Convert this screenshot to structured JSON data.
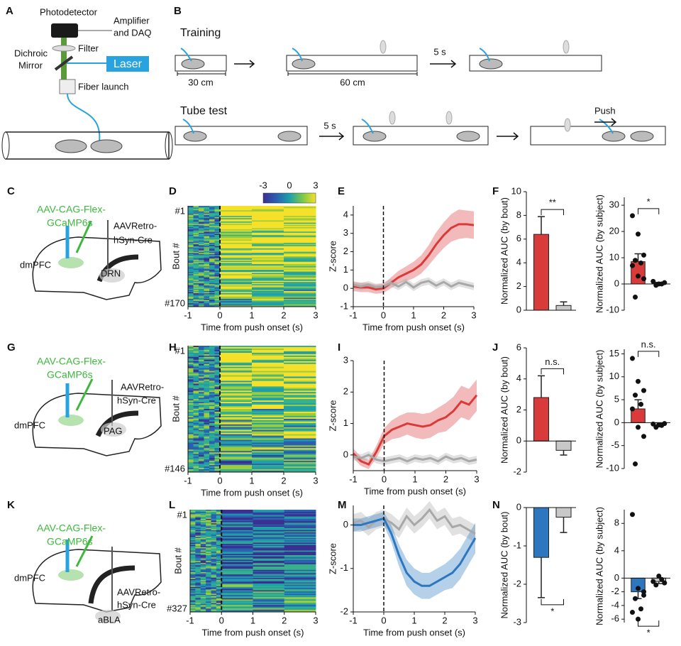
{
  "figure": {
    "panel_letters": [
      "A",
      "B",
      "C",
      "D",
      "E",
      "F",
      "G",
      "H",
      "I",
      "J",
      "K",
      "L",
      "M",
      "N"
    ],
    "setup": {
      "photodetector": "Photodetector",
      "amplifier": [
        "Amplifier",
        "and DAQ"
      ],
      "filter": "Filter",
      "dichroic": [
        "Dichroic",
        "Mirror"
      ],
      "laser": "Laser",
      "fiber_launch": "Fiber launch"
    },
    "protocol": {
      "training": "Training",
      "tube_test": "Tube test",
      "length_short": "30 cm",
      "length_long": "60 cm",
      "delay_training": "5 s",
      "delay_test": "5 s",
      "push": "Push"
    },
    "surgeries": [
      {
        "virus_flex": [
          "AAV-CAG-Flex-",
          "GCaMP6s"
        ],
        "virus_retro": [
          "AAVRetro-",
          "hSyn-Cre"
        ],
        "source": "dmPFC",
        "target": "DRN"
      },
      {
        "virus_flex": [
          "AAV-CAG-Flex-",
          "GCaMP6s"
        ],
        "virus_retro": [
          "AAVRetro-",
          "hSyn-Cre"
        ],
        "source": "dmPFC",
        "target": "PAG"
      },
      {
        "virus_flex": [
          "AAV-CAG-Flex-",
          "GCaMP6s"
        ],
        "virus_retro": [
          "AAVRetro-",
          "hSyn-Cre"
        ],
        "source": "dmPFC",
        "target": "aBLA"
      }
    ]
  },
  "chart_data": [
    {
      "type": "heatmap",
      "xlabel": "Time from push onset (s)",
      "ylabel": "Bout #",
      "xlim": [
        -1,
        3
      ],
      "xticks": [
        -1,
        0,
        1,
        2,
        3
      ],
      "vline": 0,
      "row_labels": [
        "#1",
        "#170"
      ],
      "clim": [
        -3,
        3
      ],
      "cticks": [
        -3,
        0,
        3
      ]
    },
    {
      "type": "line",
      "xlabel": "Time from push onset (s)",
      "ylabel": "Z-score",
      "xlim": [
        -1,
        3
      ],
      "xticks": [
        -1,
        0,
        1,
        2,
        3
      ],
      "ylim": [
        -1,
        4.5
      ],
      "yticks": [
        -1,
        0,
        1,
        2,
        3,
        4
      ],
      "vline": 0,
      "x": [
        -1,
        -0.75,
        -0.5,
        -0.25,
        0,
        0.25,
        0.5,
        0.75,
        1,
        1.25,
        1.5,
        1.75,
        2,
        2.25,
        2.5,
        2.75,
        3
      ],
      "series": [
        {
          "color": "#d93a3a",
          "values": [
            0.1,
            0.05,
            0.05,
            -0.05,
            0,
            0.3,
            0.6,
            0.8,
            1.0,
            1.3,
            1.8,
            2.4,
            2.9,
            3.3,
            3.5,
            3.5,
            3.45
          ],
          "error": [
            0.25,
            0.25,
            0.25,
            0.25,
            0.25,
            0.3,
            0.35,
            0.4,
            0.45,
            0.5,
            0.55,
            0.65,
            0.7,
            0.75,
            0.8,
            0.75,
            0.75
          ]
        },
        {
          "color": "#a8a8a8",
          "values": [
            0.2,
            0.1,
            0.2,
            0.05,
            0.1,
            0.3,
            0.1,
            0.35,
            0.05,
            0.3,
            0.4,
            0.15,
            0.35,
            0.1,
            0.3,
            0.2,
            0.1
          ],
          "error": [
            0.2,
            0.2,
            0.2,
            0.2,
            0.2,
            0.2,
            0.2,
            0.2,
            0.2,
            0.2,
            0.2,
            0.2,
            0.2,
            0.2,
            0.2,
            0.2,
            0.2
          ]
        }
      ]
    },
    {
      "type": "bar",
      "ylabel": "Normalized AUC (by bout)",
      "ylim": [
        0,
        10
      ],
      "yticks": [
        0,
        2,
        4,
        6,
        8,
        10
      ],
      "values": [
        6.4,
        0.4
      ],
      "errors": [
        1.5,
        0.3
      ],
      "colors": [
        "#d93a3a",
        "#c8c8c8"
      ],
      "significance": "**",
      "significance_color": "#d93a3a",
      "bracket": "above"
    },
    {
      "type": "bar_scatter",
      "ylabel": "Normalized AUC (by subject)",
      "ylim": [
        -10,
        33
      ],
      "yticks": [
        -10,
        0,
        10,
        20,
        30
      ],
      "values": [
        8.5,
        0.3
      ],
      "errors": [
        3,
        0.3
      ],
      "colors": [
        "#d93a3a",
        "#c8c8c8"
      ],
      "points": [
        [
          26,
          19,
          11,
          9,
          8,
          7,
          3,
          2,
          -5
        ],
        [
          1,
          0,
          0.5,
          -0.5,
          0
        ]
      ],
      "significance": "*",
      "significance_color": "#d93a3a",
      "bracket": "above"
    },
    {
      "type": "heatmap",
      "xlabel": "Time from push onset (s)",
      "ylabel": "Bout #",
      "xlim": [
        -1,
        3
      ],
      "xticks": [
        -1,
        0,
        1,
        2,
        3
      ],
      "vline": 0,
      "row_labels": [
        "#1",
        "#146"
      ]
    },
    {
      "type": "line",
      "xlabel": "Time from push onset (s)",
      "ylabel": "Z-score",
      "xlim": [
        -1,
        3
      ],
      "xticks": [
        -1,
        0,
        1,
        2,
        3
      ],
      "ylim": [
        -0.5,
        3
      ],
      "yticks": [
        0,
        1,
        2,
        3
      ],
      "vline": 0,
      "x": [
        -1,
        -0.75,
        -0.5,
        -0.25,
        0,
        0.25,
        0.5,
        0.75,
        1,
        1.25,
        1.5,
        1.75,
        2,
        2.25,
        2.5,
        2.75,
        3
      ],
      "series": [
        {
          "color": "#d93a3a",
          "values": [
            0.05,
            -0.2,
            -0.3,
            0.1,
            0.6,
            0.8,
            0.9,
            1.0,
            0.95,
            0.9,
            0.95,
            1.1,
            1.2,
            1.4,
            1.7,
            1.6,
            1.9
          ],
          "error": [
            0.15,
            0.15,
            0.15,
            0.2,
            0.25,
            0.3,
            0.35,
            0.35,
            0.4,
            0.4,
            0.4,
            0.4,
            0.45,
            0.45,
            0.5,
            0.5,
            0.5
          ]
        },
        {
          "color": "#a8a8a8",
          "values": [
            -0.05,
            -0.1,
            0.0,
            -0.15,
            -0.2,
            -0.15,
            -0.1,
            -0.2,
            -0.1,
            -0.15,
            -0.1,
            -0.2,
            -0.05,
            -0.15,
            -0.1,
            -0.2,
            -0.15
          ],
          "error": [
            0.12,
            0.12,
            0.12,
            0.12,
            0.12,
            0.12,
            0.12,
            0.12,
            0.12,
            0.12,
            0.12,
            0.12,
            0.12,
            0.12,
            0.12,
            0.12,
            0.12
          ]
        }
      ]
    },
    {
      "type": "bar",
      "ylabel": "Normalized AUC (by bout)",
      "ylim": [
        -2,
        6
      ],
      "yticks": [
        -2,
        0,
        2,
        4,
        6
      ],
      "values": [
        2.8,
        -0.6
      ],
      "errors": [
        1.4,
        0.3
      ],
      "colors": [
        "#d93a3a",
        "#c8c8c8"
      ],
      "significance": "n.s.",
      "significance_color": "#222222",
      "bracket": "above"
    },
    {
      "type": "bar_scatter",
      "ylabel": "Normalized AUC (by subject)",
      "ylim": [
        -10,
        16
      ],
      "yticks": [
        -10,
        -5,
        0,
        5,
        10,
        15
      ],
      "values": [
        3,
        -0.5
      ],
      "errors": [
        2,
        0.3
      ],
      "colors": [
        "#d93a3a",
        "#c8c8c8"
      ],
      "points": [
        [
          14,
          9,
          7,
          6,
          4,
          3,
          -1,
          -3,
          -9
        ],
        [
          -0.3,
          -0.5,
          -0.2,
          -1,
          -0.6
        ]
      ],
      "significance": "n.s.",
      "significance_color": "#222222",
      "bracket": "above"
    },
    {
      "type": "heatmap",
      "xlabel": "Time from push onset (s)",
      "ylabel": "Bout #",
      "xlim": [
        -1,
        3
      ],
      "xticks": [
        -1,
        0,
        1,
        2,
        3
      ],
      "vline": 0,
      "row_labels": [
        "#1",
        "#327"
      ]
    },
    {
      "type": "line",
      "xlabel": "Time from push onset (s)",
      "ylabel": "Z-score",
      "xlim": [
        -1,
        3
      ],
      "xticks": [
        -1,
        0,
        1,
        2,
        3
      ],
      "ylim": [
        -2,
        0.45
      ],
      "yticks": [
        -2,
        -1,
        0
      ],
      "vline": 0,
      "x": [
        -1,
        -0.75,
        -0.5,
        -0.25,
        0,
        0.25,
        0.5,
        0.75,
        1,
        1.25,
        1.5,
        1.75,
        2,
        2.25,
        2.5,
        2.75,
        3
      ],
      "series": [
        {
          "color": "#a8a8a8",
          "values": [
            0.05,
            0.1,
            -0.05,
            0.1,
            0.15,
            0.05,
            -0.1,
            0.2,
            0.0,
            0.15,
            0.35,
            0.1,
            0.2,
            -0.05,
            0.0,
            -0.1,
            -0.2
          ],
          "error": [
            0.2,
            0.2,
            0.2,
            0.2,
            0.2,
            0.2,
            0.2,
            0.2,
            0.2,
            0.2,
            0.2,
            0.2,
            0.2,
            0.2,
            0.2,
            0.2,
            0.2
          ]
        },
        {
          "color": "#2c77c0",
          "values": [
            0.0,
            0.0,
            0.05,
            0.1,
            0.15,
            -0.2,
            -0.7,
            -1.1,
            -1.3,
            -1.4,
            -1.4,
            -1.3,
            -1.2,
            -1.1,
            -0.9,
            -0.6,
            -0.3
          ],
          "error": [
            0.15,
            0.15,
            0.15,
            0.15,
            0.15,
            0.2,
            0.25,
            0.3,
            0.3,
            0.3,
            0.3,
            0.3,
            0.3,
            0.35,
            0.35,
            0.35,
            0.35
          ]
        }
      ]
    },
    {
      "type": "bar",
      "ylabel": "Normalized AUC (by bout)",
      "ylim": [
        -3,
        0
      ],
      "yticks": [
        -3,
        -2,
        -1,
        0
      ],
      "values": [
        -1.3,
        -0.25
      ],
      "errors": [
        1.05,
        0.4
      ],
      "colors": [
        "#2c77c0",
        "#c8c8c8"
      ],
      "significance": "*",
      "significance_color": "#d93a3a",
      "bracket": "below"
    },
    {
      "type": "bar_scatter",
      "ylabel": "Normalized AUC (by subject)",
      "ylim": [
        -6.5,
        10
      ],
      "yticks": [
        -6,
        -4,
        -2,
        0,
        4,
        8
      ],
      "values": [
        -2,
        -0.5
      ],
      "errors": [
        1,
        0.3
      ],
      "colors": [
        "#2c77c0",
        "#c8c8c8"
      ],
      "points": [
        [
          9.3,
          -1.5,
          -2,
          -3,
          -4.5,
          -5,
          -6,
          -2.5
        ],
        [
          -0.5,
          0.3,
          -0.7,
          -1,
          -0.2
        ]
      ],
      "significance": "*",
      "significance_color": "#d93a3a",
      "bracket": "below"
    }
  ]
}
